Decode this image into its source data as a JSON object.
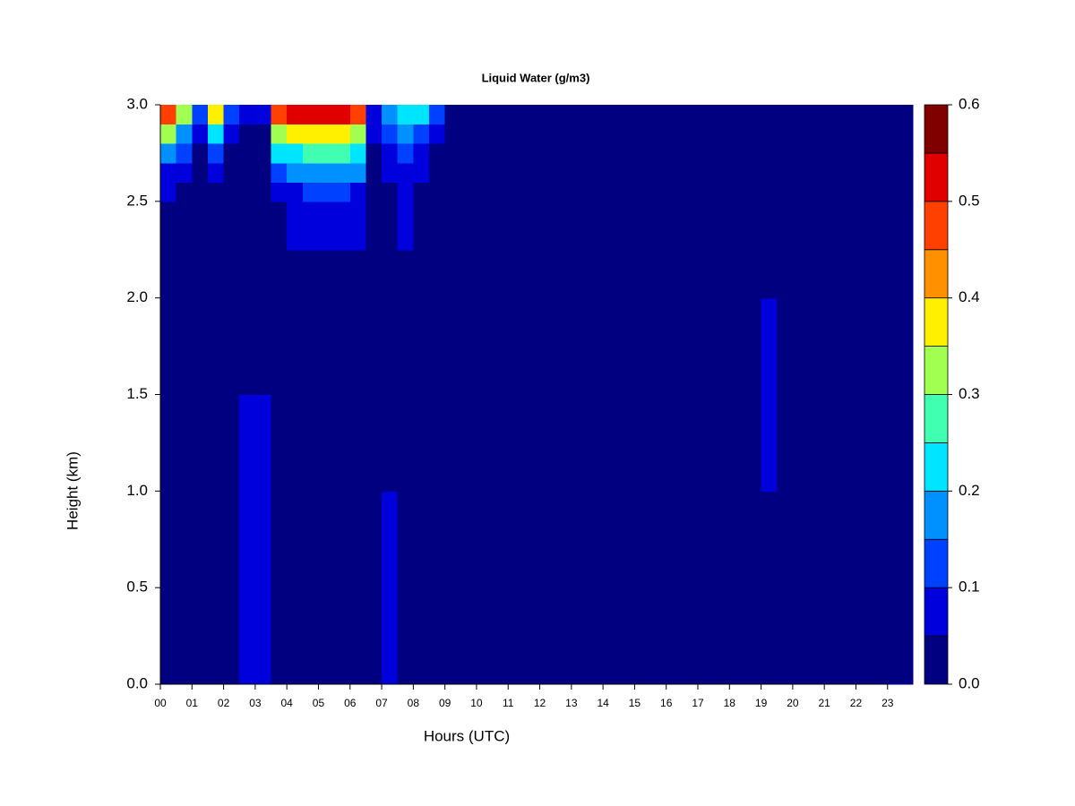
{
  "chart_data": {
    "type": "heatmap",
    "title": "Liquid Water (g/m3)",
    "x_label": "Hours (UTC)",
    "y_label": "Height (km)",
    "xlim": [
      0,
      23.8
    ],
    "ylim": [
      0,
      3
    ],
    "xticks": [
      {
        "value": 0,
        "label": "00"
      },
      {
        "value": 1,
        "label": "01"
      },
      {
        "value": 2,
        "label": "02"
      },
      {
        "value": 3,
        "label": "03"
      },
      {
        "value": 4,
        "label": "04"
      },
      {
        "value": 5,
        "label": "05"
      },
      {
        "value": 6,
        "label": "06"
      },
      {
        "value": 7,
        "label": "07"
      },
      {
        "value": 8,
        "label": "08"
      },
      {
        "value": 9,
        "label": "09"
      },
      10,
      11,
      12,
      13,
      14,
      15,
      16,
      17,
      18,
      19,
      20,
      21,
      22,
      23
    ],
    "yticks": [
      {
        "value": 0,
        "label": "0.0"
      },
      0.5,
      {
        "value": 1,
        "label": "1.0"
      },
      1.5,
      {
        "value": 2,
        "label": "2.0"
      },
      2.5,
      {
        "value": 3,
        "label": "3.0"
      }
    ],
    "x_edges": [
      0,
      0.5,
      1,
      1.5,
      2,
      2.5,
      3,
      3.5,
      4,
      4.5,
      5,
      5.5,
      6,
      6.5,
      7,
      7.5,
      8,
      8.5,
      9,
      9.5,
      10,
      10.5,
      11,
      11.5,
      12,
      12.5,
      13,
      13.5,
      14,
      14.5,
      15,
      15.5,
      16,
      16.5,
      17,
      17.5,
      18,
      18.5,
      19,
      19.5,
      20,
      20.5,
      21,
      21.5,
      22,
      22.5,
      23,
      23.5,
      23.8
    ],
    "y_edges": [
      0,
      0.5,
      1,
      1.5,
      2,
      2.25,
      2.5,
      2.6,
      2.7,
      2.8,
      2.9,
      3
    ],
    "z": [
      [
        0.01,
        0.01,
        0.01,
        0.01,
        0.01,
        0.07,
        0.09,
        0.01,
        0.01,
        0.01,
        0.01,
        0.01,
        0.01,
        0.01,
        0.08,
        0.03,
        0.01,
        0.01,
        0,
        0,
        0,
        0,
        0,
        0,
        0,
        0,
        0,
        0,
        0,
        0,
        0,
        0,
        0,
        0,
        0,
        0,
        0,
        0,
        0,
        0,
        0,
        0,
        0,
        0,
        0,
        0,
        0,
        0
      ],
      [
        0.01,
        0.01,
        0.01,
        0.01,
        0.01,
        0.07,
        0.08,
        0.01,
        0.01,
        0.01,
        0.01,
        0.01,
        0.01,
        0.01,
        0.07,
        0.01,
        0.01,
        0.01,
        0,
        0,
        0,
        0,
        0,
        0,
        0,
        0,
        0,
        0,
        0,
        0,
        0,
        0,
        0,
        0,
        0,
        0,
        0,
        0,
        0,
        0,
        0,
        0,
        0,
        0,
        0,
        0,
        0,
        0
      ],
      [
        0.01,
        0.01,
        0.01,
        0.01,
        0.01,
        0.06,
        0.07,
        0.01,
        0.01,
        0.01,
        0.01,
        0.01,
        0.01,
        0.01,
        0.01,
        0.01,
        0.01,
        0.01,
        0,
        0,
        0,
        0,
        0,
        0,
        0,
        0,
        0,
        0,
        0,
        0,
        0,
        0,
        0,
        0,
        0,
        0,
        0,
        0,
        0.06,
        0,
        0,
        0,
        0,
        0,
        0,
        0,
        0,
        0
      ],
      [
        0.01,
        0.01,
        0.01,
        0.01,
        0.01,
        0.03,
        0.03,
        0.01,
        0.01,
        0.01,
        0.01,
        0.01,
        0.01,
        0.01,
        0.01,
        0.01,
        0.01,
        0.01,
        0,
        0,
        0,
        0,
        0,
        0,
        0,
        0,
        0,
        0,
        0,
        0,
        0,
        0,
        0,
        0,
        0,
        0,
        0,
        0,
        0.06,
        0,
        0,
        0,
        0,
        0,
        0,
        0,
        0,
        0
      ],
      [
        0.02,
        0.02,
        0.02,
        0.02,
        0.02,
        0.02,
        0.02,
        0.02,
        0.03,
        0.03,
        0.03,
        0.03,
        0.03,
        0.01,
        0.01,
        0.03,
        0.01,
        0.01,
        0,
        0,
        0,
        0,
        0,
        0,
        0,
        0,
        0,
        0,
        0,
        0,
        0,
        0,
        0,
        0,
        0,
        0,
        0,
        0,
        0,
        0,
        0,
        0,
        0,
        0,
        0,
        0,
        0,
        0
      ],
      [
        0.03,
        0.02,
        0.02,
        0.02,
        0.02,
        0.02,
        0.02,
        0.03,
        0.06,
        0.06,
        0.06,
        0.06,
        0.06,
        0.02,
        0.02,
        0.06,
        0.02,
        0.01,
        0,
        0,
        0,
        0,
        0,
        0,
        0,
        0,
        0,
        0,
        0,
        0,
        0,
        0,
        0,
        0,
        0,
        0,
        0,
        0,
        0,
        0,
        0,
        0,
        0,
        0,
        0,
        0,
        0,
        0
      ],
      [
        0.06,
        0.04,
        0.02,
        0.03,
        0.02,
        0.02,
        0.02,
        0.07,
        0.08,
        0.1,
        0.1,
        0.1,
        0.08,
        0.02,
        0.03,
        0.07,
        0.03,
        0.01,
        0,
        0,
        0,
        0,
        0,
        0,
        0,
        0,
        0,
        0,
        0,
        0,
        0,
        0,
        0,
        0,
        0,
        0,
        0,
        0,
        0,
        0,
        0,
        0,
        0,
        0,
        0,
        0,
        0,
        0
      ],
      [
        0.08,
        0.06,
        0.02,
        0.06,
        0.02,
        0.02,
        0.02,
        0.12,
        0.15,
        0.17,
        0.17,
        0.17,
        0.15,
        0.03,
        0.06,
        0.08,
        0.06,
        0.02,
        0,
        0,
        0,
        0,
        0,
        0,
        0,
        0,
        0,
        0,
        0,
        0,
        0,
        0,
        0,
        0,
        0,
        0,
        0,
        0,
        0,
        0,
        0,
        0,
        0,
        0,
        0,
        0,
        0,
        0
      ],
      [
        0.15,
        0.1,
        0.03,
        0.1,
        0.03,
        0.02,
        0.02,
        0.2,
        0.22,
        0.25,
        0.25,
        0.25,
        0.22,
        0.04,
        0.08,
        0.1,
        0.08,
        0.03,
        0,
        0,
        0,
        0,
        0,
        0,
        0,
        0,
        0,
        0,
        0,
        0,
        0,
        0,
        0,
        0,
        0,
        0,
        0,
        0,
        0,
        0,
        0,
        0,
        0,
        0,
        0,
        0,
        0,
        0
      ],
      [
        0.3,
        0.15,
        0.06,
        0.2,
        0.06,
        0.03,
        0.03,
        0.3,
        0.35,
        0.38,
        0.38,
        0.38,
        0.3,
        0.06,
        0.1,
        0.15,
        0.12,
        0.07,
        0,
        0,
        0,
        0,
        0,
        0,
        0,
        0,
        0,
        0,
        0,
        0,
        0,
        0,
        0,
        0,
        0,
        0,
        0,
        0,
        0,
        0,
        0,
        0,
        0,
        0,
        0,
        0,
        0,
        0
      ],
      [
        0.45,
        0.3,
        0.1,
        0.35,
        0.1,
        0.06,
        0.07,
        0.45,
        0.5,
        0.5,
        0.5,
        0.5,
        0.45,
        0.07,
        0.15,
        0.22,
        0.2,
        0.1,
        0,
        0,
        0,
        0,
        0,
        0,
        0,
        0,
        0,
        0,
        0,
        0,
        0,
        0,
        0,
        0,
        0,
        0,
        0,
        0,
        0,
        0,
        0,
        0,
        0,
        0,
        0,
        0,
        0,
        0
      ]
    ],
    "colorbar": {
      "levels": [
        0,
        0.05,
        0.1,
        0.15,
        0.2,
        0.25,
        0.3,
        0.35,
        0.4,
        0.45,
        0.5,
        0.55,
        0.6
      ],
      "colors": [
        "#000080",
        "#0000DC",
        "#0040FF",
        "#0090FF",
        "#00E5FF",
        "#40FFB0",
        "#A0FF50",
        "#FFF000",
        "#FF9000",
        "#FF4000",
        "#E00000",
        "#800000"
      ],
      "ticks": [
        {
          "value": 0,
          "label": "0.0"
        },
        0.1,
        0.2,
        0.3,
        0.4,
        0.5,
        0.6
      ]
    }
  }
}
